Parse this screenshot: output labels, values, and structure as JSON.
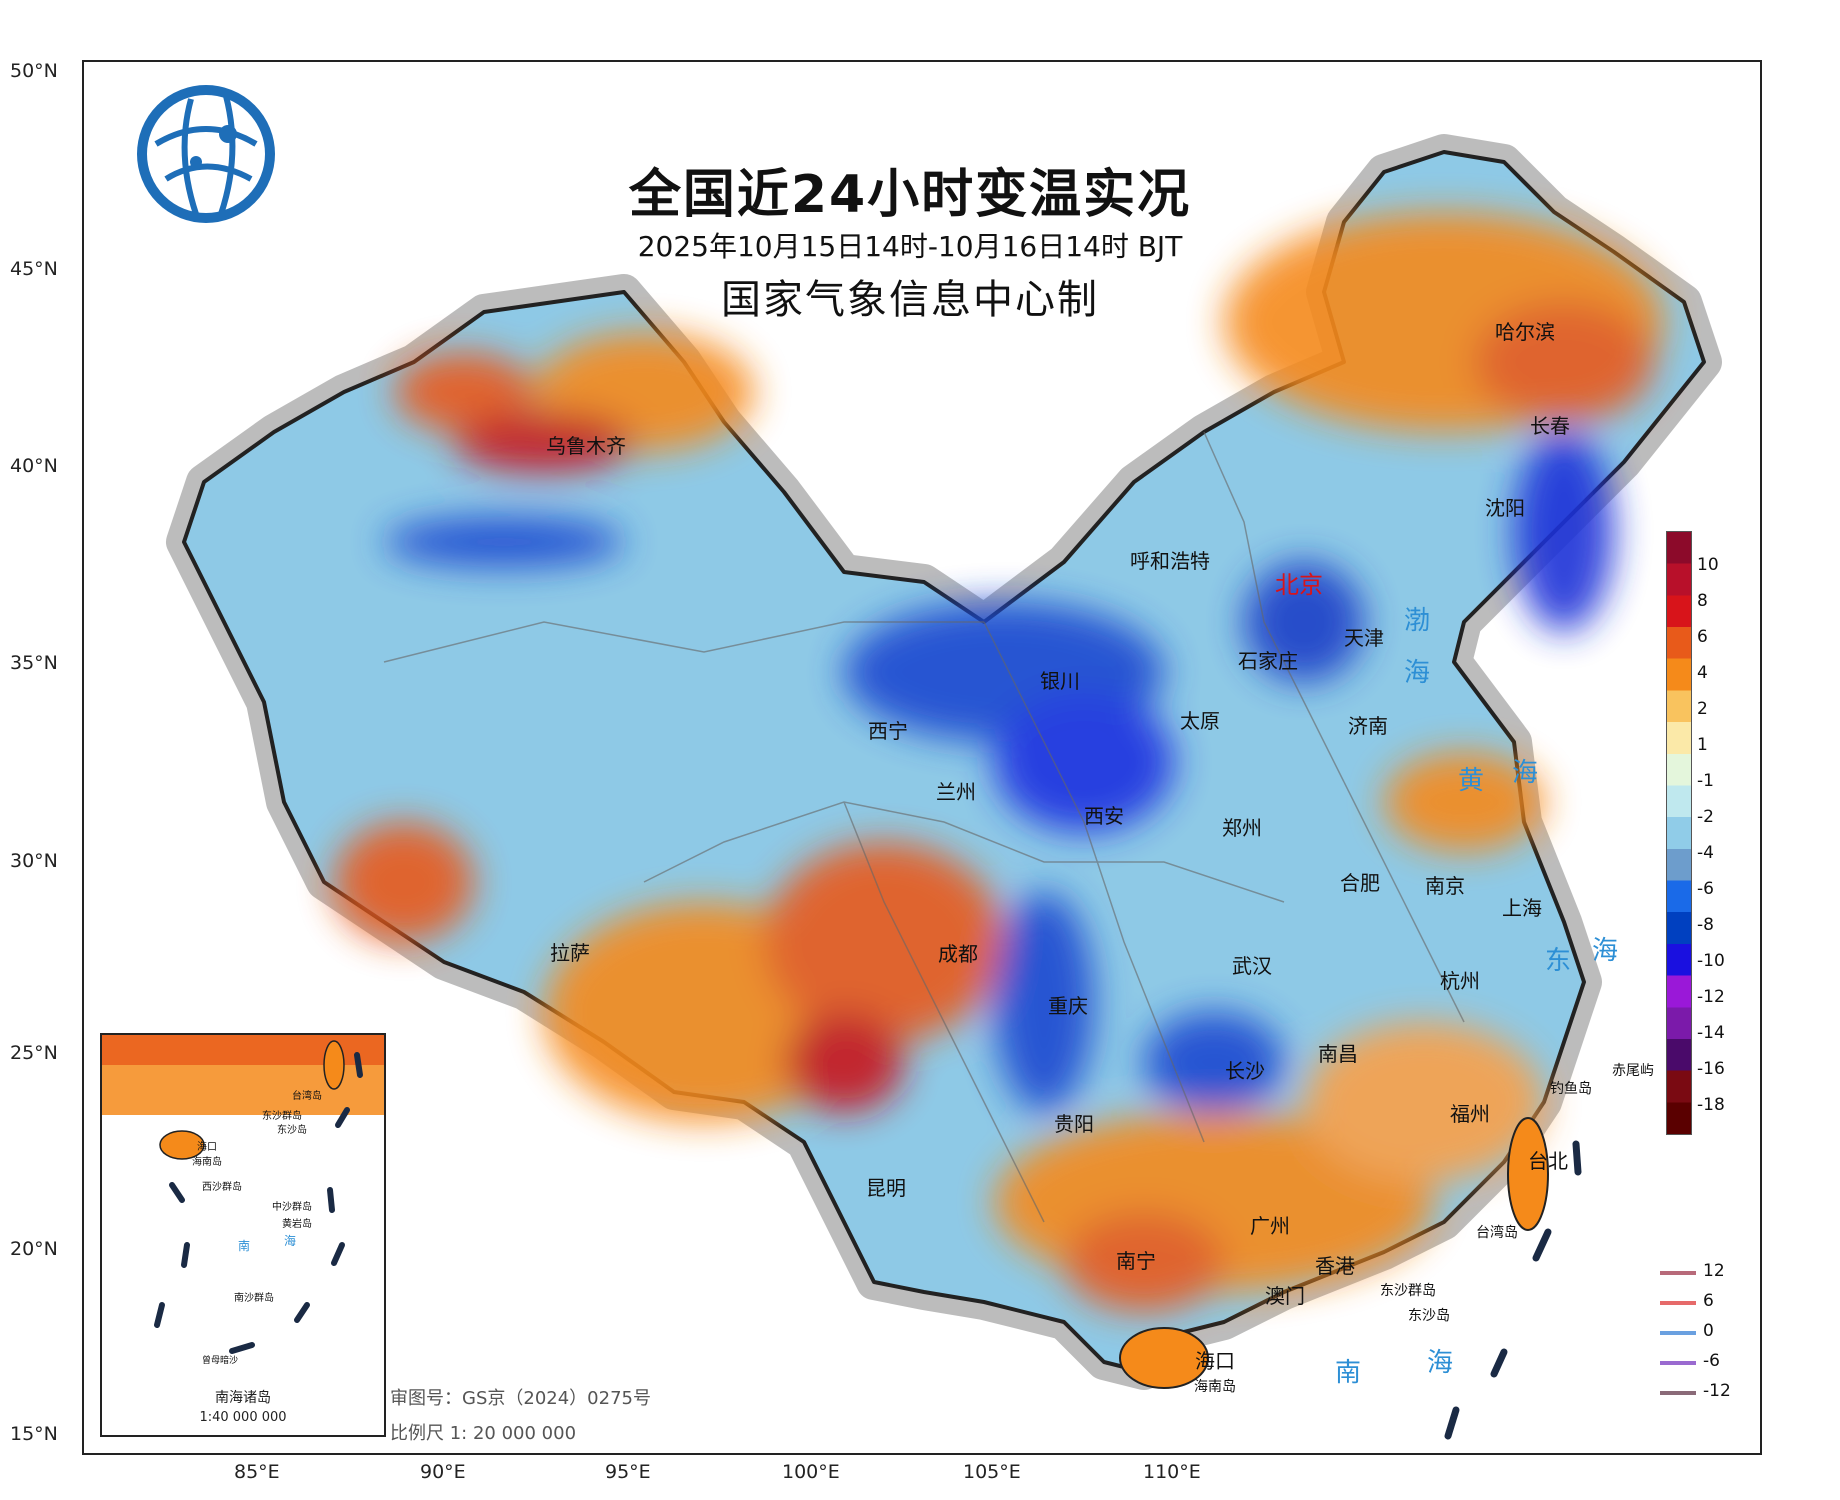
{
  "title": "全国近24小时变温实况",
  "subtitle": "2025年10月15日14时-10月16日14时 BJT",
  "producer": "国家气象信息中心制",
  "map_review": "审图号：GS京（2024）0275号",
  "scale": "比例尺 1: 20 000 000",
  "lat_labels": [
    "50°N",
    "45°N",
    "40°N",
    "35°N",
    "30°N",
    "25°N",
    "20°N",
    "15°N"
  ],
  "lon_labels": [
    "85°E",
    "90°E",
    "95°E",
    "100°E",
    "105°E",
    "110°E"
  ],
  "legend": {
    "colors": [
      "#5a0000",
      "#7a0a12",
      "#4a0a6a",
      "#7b1aaa",
      "#9a18d8",
      "#1a10e0",
      "#0040c0",
      "#1a6ae8",
      "#6d9dcc",
      "#90cce8",
      "#bfe8ee",
      "#e4f6dc",
      "#fbe9a8",
      "#f9c35e",
      "#f58a1a",
      "#e85a1a",
      "#d8141a",
      "#b8102a",
      "#8c0a2a"
    ],
    "labels": [
      "10",
      "8",
      "6",
      "4",
      "2",
      "1",
      "-1",
      "-2",
      "-4",
      "-6",
      "-8",
      "-10",
      "-12",
      "-14",
      "-16",
      "-18"
    ]
  },
  "line_legend": [
    {
      "label": "12",
      "color": "#b86a7a"
    },
    {
      "label": "6",
      "color": "#e66a6a"
    },
    {
      "label": "0",
      "color": "#6aa0e0"
    },
    {
      "label": "-6",
      "color": "#9a6ad0"
    },
    {
      "label": "-12",
      "color": "#8a6a78"
    }
  ],
  "cities": [
    "乌鲁木齐",
    "呼和浩特",
    "北京",
    "天津",
    "石家庄",
    "太原",
    "银川",
    "西宁",
    "兰州",
    "西安",
    "郑州",
    "济南",
    "沈阳",
    "长春",
    "哈尔滨",
    "合肥",
    "南京",
    "上海",
    "杭州",
    "武汉",
    "长沙",
    "南昌",
    "福州",
    "台北",
    "拉萨",
    "成都",
    "重庆",
    "贵阳",
    "昆明",
    "南宁",
    "广州",
    "香港",
    "澳门",
    "海口"
  ],
  "seas": [
    "渤",
    "海",
    "黄",
    "海",
    "东",
    "海",
    "南",
    "海"
  ],
  "islands": [
    "钓鱼岛",
    "赤尾屿",
    "台湾岛",
    "海南岛",
    "东沙群岛",
    "东沙岛"
  ],
  "inset": {
    "title": "南海诸岛",
    "scale": "1:40 000 000",
    "labels": [
      "台湾岛",
      "东沙群岛",
      "东沙岛",
      "海口",
      "海南岛",
      "西沙群岛",
      "中沙群岛",
      "黄岩岛",
      "南",
      "海",
      "南沙群岛",
      "曾母暗沙"
    ]
  }
}
